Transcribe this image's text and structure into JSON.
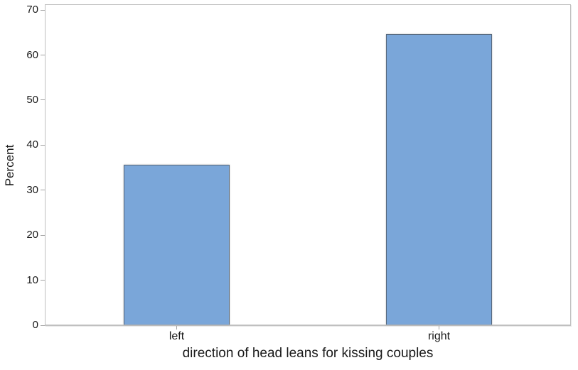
{
  "chart_data": {
    "type": "bar",
    "title": "",
    "categories": [
      "left",
      "right"
    ],
    "values": [
      35.5,
      64.5
    ],
    "xlabel": "direction of head leans for kissing couples",
    "ylabel": "Percent",
    "yticks": [
      0,
      10,
      20,
      30,
      40,
      50,
      60,
      70
    ],
    "ylim": [
      0,
      70
    ],
    "grid": false,
    "legend": "none",
    "colors": {
      "bar_fill": "#7aa6d9",
      "bar_border": "#57687c",
      "frame": "#c0c0c0",
      "tick": "#a3a3a3",
      "text": "#1a1a1a"
    }
  }
}
